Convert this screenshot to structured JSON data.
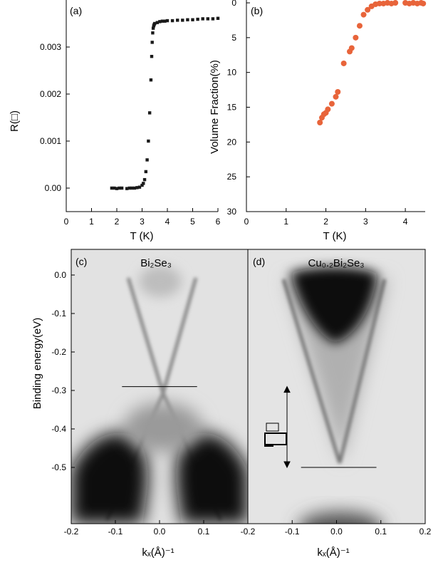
{
  "chart_data": [
    {
      "panel_label": "(a)",
      "type": "scatter",
      "xlabel": "T (K)",
      "ylabel": "R(□)",
      "xlim": [
        0,
        6
      ],
      "ylim": [
        -0.0005,
        0.004
      ],
      "xticks": [
        "0",
        "1",
        "2",
        "3",
        "4",
        "5",
        "6"
      ],
      "yticks": [
        {
          "v": 0.0,
          "label": "0.00"
        },
        {
          "v": 0.001,
          "label": "0.001"
        },
        {
          "v": 0.002,
          "label": "0.002"
        },
        {
          "v": 0.003,
          "label": "0.003"
        }
      ],
      "color": "#1a1a1a",
      "x": [
        1.8,
        1.9,
        2.0,
        2.1,
        2.2,
        2.4,
        2.5,
        2.6,
        2.7,
        2.8,
        2.9,
        3.0,
        3.05,
        3.1,
        3.15,
        3.2,
        3.25,
        3.3,
        3.35,
        3.38,
        3.4,
        3.42,
        3.44,
        3.46,
        3.48,
        3.5,
        3.6,
        3.7,
        3.8,
        3.9,
        4.0,
        4.2,
        4.4,
        4.6,
        4.8,
        5.0,
        5.2,
        5.4,
        5.6,
        5.8,
        6.0
      ],
      "y": [
        0.0,
        0.0,
        -1e-05,
        0.0,
        0.0,
        -1e-05,
        0.0,
        0.0,
        0.0,
        1e-05,
        2e-05,
        6e-05,
        0.0001,
        0.00018,
        0.00035,
        0.0006,
        0.001,
        0.0016,
        0.0023,
        0.0028,
        0.0031,
        0.0033,
        0.0034,
        0.00345,
        0.00348,
        0.0035,
        0.00352,
        0.00354,
        0.00355,
        0.00355,
        0.00356,
        0.00356,
        0.00357,
        0.00357,
        0.00358,
        0.00358,
        0.00359,
        0.0036,
        0.0036,
        0.0036,
        0.00361
      ]
    },
    {
      "panel_label": "(b)",
      "type": "scatter",
      "xlabel": "T (K)",
      "ylabel": "Volume Fraction(%)",
      "xlim": [
        0,
        4.5
      ],
      "ylim": [
        30,
        0
      ],
      "xticks": [
        "0",
        "1",
        "2",
        "3",
        "4"
      ],
      "yticks": [
        "0",
        "5",
        "10",
        "15",
        "20",
        "25",
        "30"
      ],
      "color": "#e8643a",
      "x": [
        1.85,
        1.9,
        1.95,
        2.0,
        2.05,
        2.15,
        2.25,
        2.3,
        2.45,
        2.6,
        2.65,
        2.75,
        2.85,
        2.95,
        3.05,
        3.15,
        3.25,
        3.35,
        3.45,
        3.55,
        3.65,
        3.75,
        4.0,
        4.1,
        4.2,
        4.3,
        4.4,
        4.45
      ],
      "y": [
        17.2,
        16.5,
        16.0,
        15.8,
        15.3,
        14.5,
        13.5,
        12.8,
        8.7,
        7.0,
        6.5,
        5.0,
        3.3,
        1.7,
        1.0,
        0.5,
        0.2,
        0.1,
        0.1,
        0.0,
        0.1,
        0.0,
        0.0,
        0.1,
        0.0,
        0.1,
        0.0,
        0.1
      ]
    },
    {
      "panel_label": "(c)",
      "type": "heatmap",
      "title": "Bi₂Se₃",
      "xlabel": "kₓ(Å)⁻¹",
      "ylabel": "Binding energy(eV)",
      "xlim": [
        -0.2,
        0.2
      ],
      "ylim": [
        -0.6,
        0.03
      ],
      "xticks": [
        "-0.2",
        "-0.1",
        "0.0",
        "0.1"
      ],
      "yticks": [
        "0.0",
        "-0.1",
        "-0.2",
        "-0.3",
        "-0.4",
        "-0.5"
      ],
      "dirac_point_line": {
        "energy": -0.29,
        "k_range": [
          -0.085,
          0.085
        ]
      }
    },
    {
      "panel_label": "(d)",
      "type": "heatmap",
      "title": "Cu₀.₂Bi₂Se₃",
      "xlabel": "kₓ(Å)⁻¹",
      "xlim": [
        -0.2,
        0.2
      ],
      "ylim": [
        -0.6,
        0.03
      ],
      "xticks": [
        "-0.2",
        "-0.1",
        "0.0",
        "0.1",
        "0.2"
      ],
      "dirac_point_line": {
        "energy": -0.5,
        "k_range": [
          -0.08,
          0.09
        ]
      },
      "shift_arrow": {
        "from": -0.29,
        "to": -0.5
      }
    }
  ]
}
